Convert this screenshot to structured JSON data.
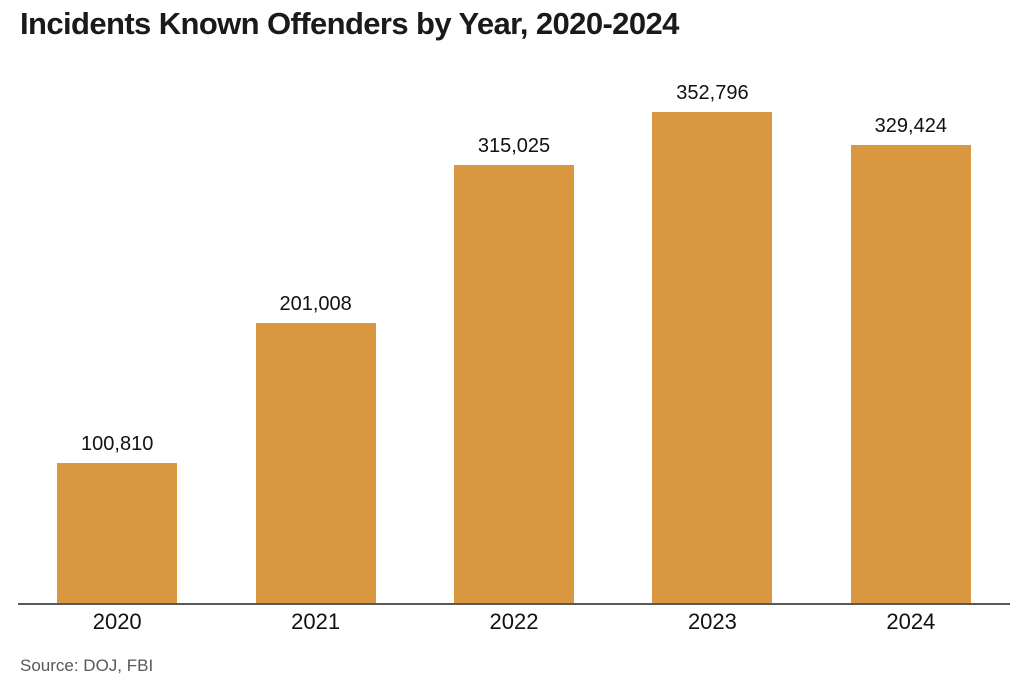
{
  "title": "Incidents Known Offenders by Year, 2020-2024",
  "source": "Source: DOJ, FBI",
  "colors": {
    "bar": "#D9983F",
    "axis": "#58585A",
    "title": "#1A1A1A",
    "value_label": "#111111",
    "source": "#58585A",
    "background": "#FFFFFF"
  },
  "chart_data": {
    "type": "bar",
    "title": "Incidents Known Offenders by Year, 2020-2024",
    "categories": [
      "2020",
      "2021",
      "2022",
      "2023",
      "2024"
    ],
    "values": [
      100810,
      201008,
      315025,
      352796,
      329424
    ],
    "value_labels": [
      "100,810",
      "201,008",
      "315,025",
      "352,796",
      "329,424"
    ],
    "xlabel": "",
    "ylabel": "",
    "ylim": [
      0,
      352796
    ],
    "grid": false,
    "legend": false,
    "bar_color": "#D9983F",
    "source": "Source: DOJ, FBI"
  }
}
